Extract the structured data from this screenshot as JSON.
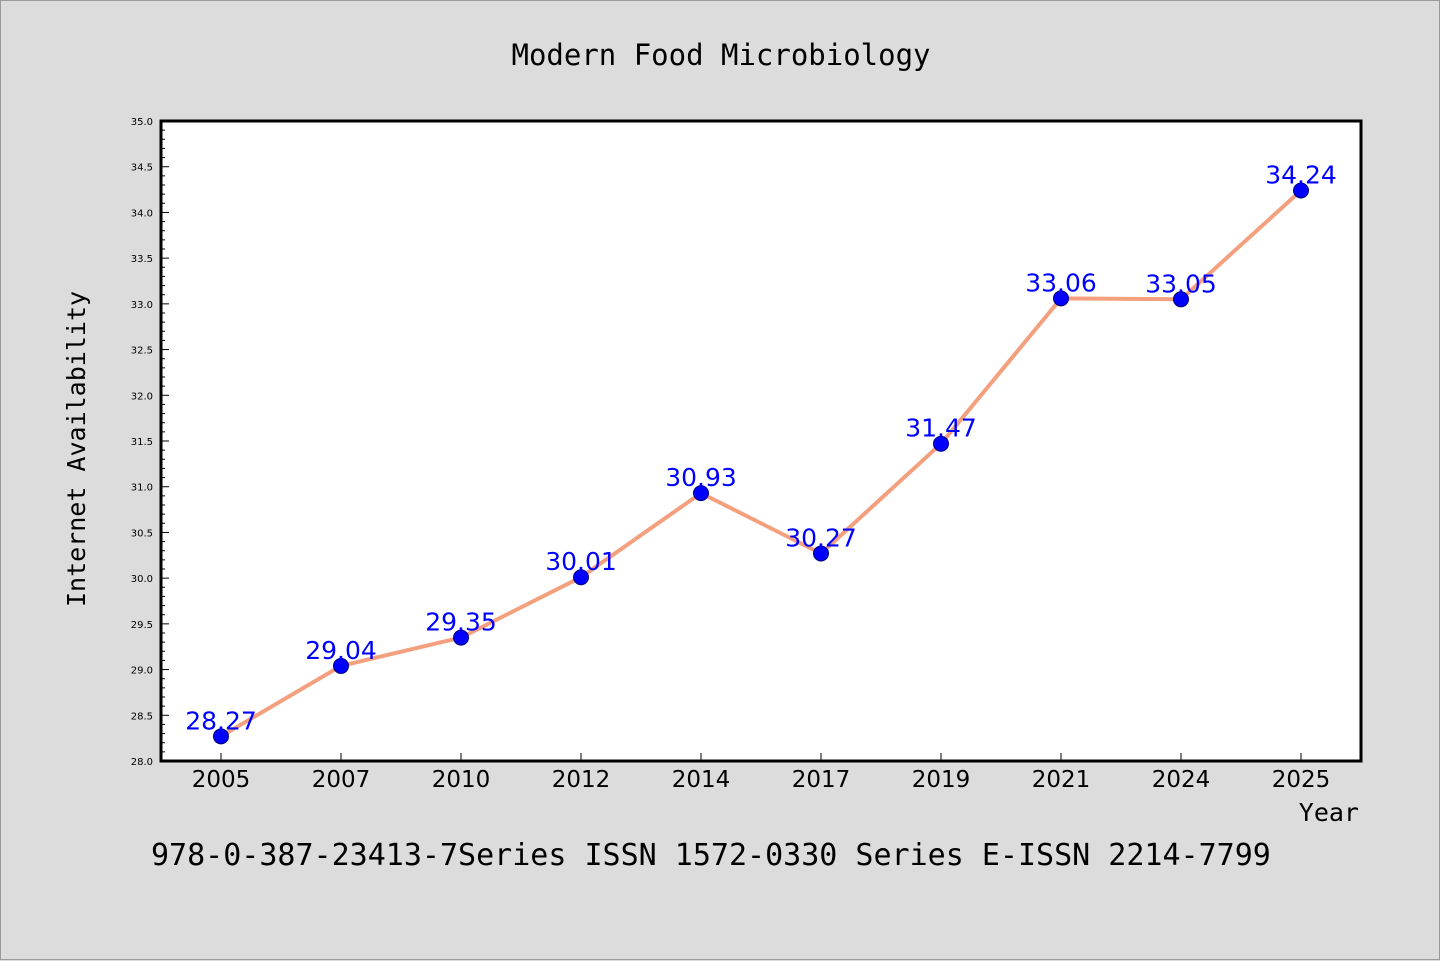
{
  "chart_data": {
    "type": "line",
    "title": "Modern Food Microbiology",
    "xlabel": "Year",
    "ylabel": "Internet Availability",
    "categories": [
      "2005",
      "2007",
      "2010",
      "2012",
      "2014",
      "2017",
      "2019",
      "2021",
      "2024",
      "2025"
    ],
    "series": [
      {
        "values": [
          28.27,
          29.04,
          29.35,
          30.01,
          30.93,
          30.27,
          31.47,
          33.06,
          33.05,
          34.24
        ],
        "labels": [
          "28.27",
          "29.04",
          "29.35",
          "30.01",
          "30.93",
          "30.27",
          "31.47",
          "33.06",
          "33.05",
          "34.24"
        ],
        "line_color": "#f4a07e",
        "marker_color": "#0000ff",
        "label_color": "#0000ff"
      }
    ],
    "ylim": [
      28.0,
      35.0
    ],
    "yticks": [
      "28.0",
      "28.5",
      "29.0",
      "29.5",
      "30.0",
      "30.5",
      "31.0",
      "31.5",
      "32.0",
      "32.5",
      "33.0",
      "33.5",
      "34.0",
      "34.5",
      "35.0"
    ],
    "grid": false,
    "legend": "none",
    "background_color": "#dcdcdc",
    "plot_background_color": "#ffffff"
  },
  "footer": {
    "text": "978-0-387-23413-7Series ISSN 1572-0330 Series E-ISSN 2214-7799"
  }
}
